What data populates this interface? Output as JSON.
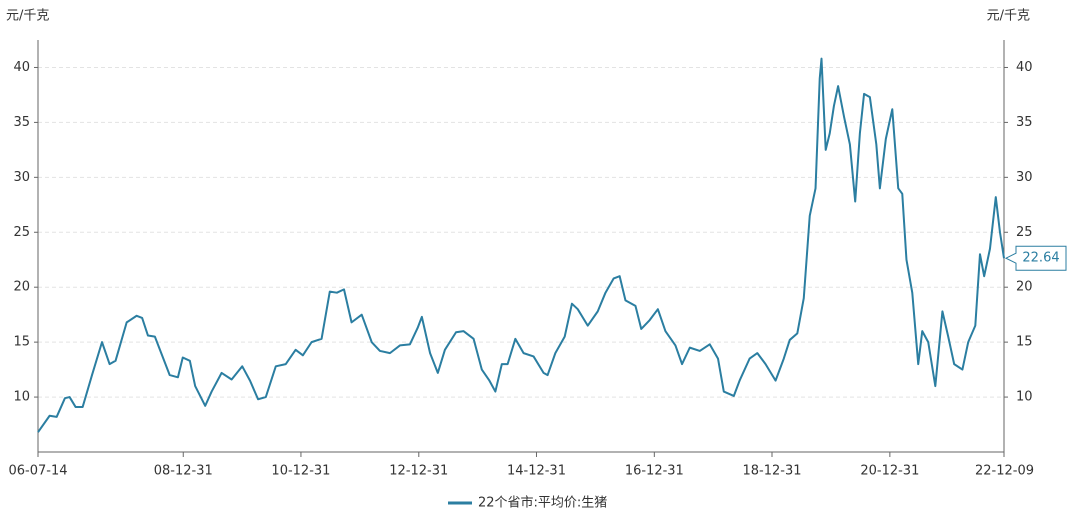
{
  "chart_data": {
    "type": "line",
    "y_label": "元/千克",
    "y2_label": "元/千克",
    "x": [
      "06-07-14",
      "06-09-24",
      "06-11-07",
      "06-12-28",
      "07-01-26",
      "07-03-04",
      "07-04-17",
      "07-06-14",
      "07-08-15",
      "07-10-01",
      "07-11-07",
      "08-01-15",
      "08-03-17",
      "08-04-20",
      "08-05-26",
      "08-07-08",
      "08-10-08",
      "08-11-28",
      "08-12-28",
      "09-02-10",
      "09-03-15",
      "09-05-16",
      "09-06-25",
      "09-08-26",
      "09-10-27",
      "10-01-01",
      "10-02-18",
      "10-04-09",
      "10-05-27",
      "10-07-28",
      "10-09-28",
      "10-11-28",
      "11-01-12",
      "11-03-07",
      "11-05-08",
      "11-06-28",
      "11-08-11",
      "11-09-24",
      "11-11-10",
      "12-01-12",
      "12-03-14",
      "12-05-04",
      "12-07-05",
      "12-09-05",
      "12-11-06",
      "12-12-24",
      "13-01-19",
      "13-03-11",
      "13-04-28",
      "13-06-11",
      "13-08-19",
      "13-10-05",
      "13-12-06",
      "14-01-26",
      "14-03-14",
      "14-04-20",
      "14-05-30",
      "14-07-05",
      "14-08-22",
      "14-10-12",
      "14-12-13",
      "15-02-13",
      "15-03-10",
      "15-04-27",
      "15-06-24",
      "15-08-08",
      "15-09-13",
      "15-11-14",
      "16-01-15",
      "16-03-03",
      "16-04-23",
      "16-05-30",
      "16-07-05",
      "16-09-05",
      "16-10-11",
      "16-12-02",
      "17-01-22",
      "17-03-10",
      "17-05-11",
      "17-06-21",
      "17-08-08",
      "17-10-09",
      "17-12-10",
      "18-01-30",
      "18-03-07",
      "18-05-08",
      "18-06-13",
      "18-08-14",
      "18-10-01",
      "18-11-21",
      "19-01-22",
      "19-03-14",
      "19-04-20",
      "19-06-06",
      "19-07-16",
      "19-08-22",
      "19-09-27",
      "19-10-23",
      "19-11-03",
      "19-11-29",
      "19-12-24",
      "20-01-19",
      "20-02-14",
      "20-03-22",
      "20-04-27",
      "20-05-30",
      "20-06-28",
      "20-07-24",
      "20-08-29",
      "20-10-08",
      "20-10-30",
      "20-12-06",
      "21-01-15",
      "21-02-21",
      "21-03-18",
      "21-04-13",
      "21-05-19",
      "21-06-25",
      "21-07-20",
      "21-08-26",
      "21-10-09",
      "21-11-22",
      "21-12-28",
      "22-02-03",
      "22-03-26",
      "22-05-01",
      "22-06-14",
      "22-07-13",
      "22-08-08",
      "22-09-13",
      "22-10-19",
      "22-11-14",
      "22-12-09"
    ],
    "series": [
      {
        "name": "22个省市:平均价:生猪",
        "color": "#2b7ea1",
        "values": [
          6.8,
          8.3,
          8.2,
          9.9,
          10,
          9.1,
          9.1,
          12,
          15,
          13,
          13.3,
          16.8,
          17.4,
          17.2,
          15.6,
          15.5,
          12,
          11.8,
          13.6,
          13.3,
          11,
          9.2,
          10.5,
          12.2,
          11.6,
          12.8,
          11.5,
          9.8,
          10,
          12.8,
          13,
          14.3,
          13.8,
          15,
          15.3,
          19.6,
          19.5,
          19.8,
          16.8,
          17.5,
          15,
          14.2,
          14,
          14.7,
          14.8,
          16.3,
          17.3,
          14,
          12.2,
          14.3,
          15.9,
          16,
          15.3,
          12.5,
          11.5,
          10.5,
          13,
          13,
          15.3,
          14,
          13.7,
          12.2,
          12,
          14,
          15.5,
          18.5,
          18,
          16.5,
          17.8,
          19.5,
          20.8,
          21,
          18.8,
          18.3,
          16.2,
          17,
          18,
          16,
          14.7,
          13,
          14.5,
          14.2,
          14.8,
          13.5,
          10.5,
          10.1,
          11.5,
          13.5,
          14,
          13,
          11.5,
          13.5,
          15.2,
          15.8,
          19,
          26.5,
          29,
          39,
          40.8,
          32.5,
          34,
          36.5,
          38.3,
          35.5,
          33,
          27.8,
          34,
          37.6,
          37.3,
          33,
          29,
          33.5,
          36.2,
          29,
          28.5,
          22.5,
          19.5,
          13,
          16,
          15,
          11,
          17.8,
          15.5,
          13,
          12.5,
          15,
          16.5,
          23,
          21,
          23.5,
          28.2,
          25,
          22.64
        ]
      }
    ],
    "xlim": [
      "06-07-14",
      "22-12-09"
    ],
    "xticks": [
      "06-07-14",
      "08-12-31",
      "10-12-31",
      "12-12-31",
      "14-12-31",
      "16-12-31",
      "18-12-31",
      "20-12-31",
      "22-12-09"
    ],
    "ylim": [
      5,
      42.5
    ],
    "yticks": [
      10,
      15,
      20,
      25,
      30,
      35,
      40
    ],
    "y2lim": [
      5,
      42.5
    ],
    "y2ticks": [
      10,
      15,
      20,
      25,
      30,
      35,
      40
    ],
    "grid": true,
    "legend": "bottom"
  }
}
